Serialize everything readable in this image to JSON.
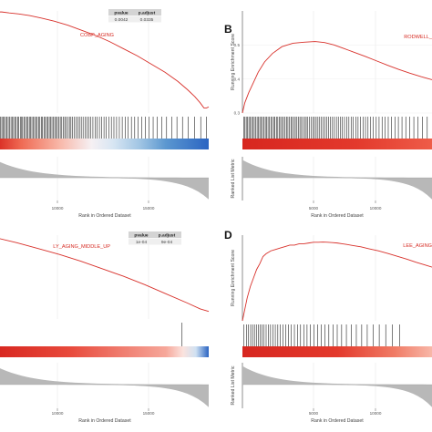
{
  "chart_data": [
    {
      "type": "line",
      "panel_label": "",
      "gene_set": "COBP_AGING",
      "stats": {
        "pvalue_label": "pvalue",
        "padj_label": "p.adjust",
        "pvalue": "0.0042",
        "padj": "0.0335"
      },
      "xlabel": "Rank in Ordered Dataset",
      "ylabel_es": "",
      "ylabel_metric": "",
      "x_ticks": [
        "10000",
        "15000"
      ],
      "x_tick_values": [
        10000,
        15000
      ],
      "xlim": [
        0,
        20000
      ],
      "es_ylim": [
        0,
        1
      ],
      "es_curve": {
        "x": [
          0,
          600,
          1300,
          2200,
          3200,
          4300,
          5500,
          6800,
          8100,
          9400,
          10700,
          12000,
          13300,
          14600,
          15900,
          17100,
          18000,
          18700,
          19200,
          19550,
          19800,
          20000
        ],
        "y": [
          0.99,
          0.99,
          0.98,
          0.97,
          0.955,
          0.93,
          0.9,
          0.86,
          0.81,
          0.76,
          0.7,
          0.63,
          0.56,
          0.48,
          0.4,
          0.31,
          0.23,
          0.16,
          0.1,
          0.05,
          0.05,
          0.06
        ]
      },
      "hits": [
        60,
        180,
        320,
        450,
        600,
        700,
        820,
        950,
        1080,
        1200,
        1330,
        1460,
        1560,
        1700,
        1820,
        1950,
        2080,
        2200,
        2330,
        2460,
        2550,
        2690,
        2810,
        2930,
        3060,
        3180,
        3300,
        3420,
        3560,
        3670,
        3800,
        3920,
        4050,
        4170,
        4300,
        4420,
        4550,
        4680,
        4800,
        4930,
        5050,
        5180,
        5300,
        5440,
        5560,
        5690,
        5810,
        5950,
        6080,
        6220,
        6360,
        6500,
        6640,
        6790,
        6940,
        7080,
        7240,
        7400,
        7560,
        7720,
        7880,
        8050,
        8220,
        8400,
        8580,
        8760,
        8950,
        9140,
        9340,
        9540,
        9750,
        9960,
        10180,
        10400,
        10630,
        10870,
        11110,
        11360,
        11620,
        11890,
        12160,
        12450,
        12750,
        13060,
        13380,
        13710,
        14050,
        14410,
        14790,
        15190,
        15610,
        16050,
        16520,
        17020,
        17540,
        18090,
        18660,
        19250,
        19800
      ],
      "band_colors": [
        "#d7261f",
        "#ef6a53",
        "#f8b7a8",
        "#f6f0f3",
        "#d8e6f3",
        "#9fc4e3",
        "#5b97d0",
        "#2a64c2"
      ],
      "band_stops": [
        0,
        0.12,
        0.3,
        0.45,
        0.55,
        0.68,
        0.8,
        1
      ]
    },
    {
      "type": "line",
      "panel_label": "B",
      "gene_set": "RODWELL_",
      "xlabel": "Rank in Ordered Dataset",
      "ylabel_es": "Running Enrichment Score",
      "ylabel_metric": "Ranked List Metric",
      "x_ticks": [
        "5000",
        "10000"
      ],
      "x_tick_values": [
        5000,
        10000
      ],
      "xlim": [
        0,
        12000
      ],
      "es_ylim": [
        0.3,
        0.6
      ],
      "es_ticks": [
        "0.5",
        "0.4",
        "0.3"
      ],
      "es_tick_values": [
        0.5,
        0.4,
        0.3
      ],
      "es_curve": {
        "x": [
          0,
          150,
          400,
          700,
          1000,
          1400,
          1900,
          2500,
          3200,
          3900,
          4600,
          5200,
          5800,
          6400,
          7100,
          7800,
          8500,
          9200,
          9900,
          10600,
          11300,
          12000
        ],
        "y": [
          0.3,
          0.33,
          0.36,
          0.39,
          0.42,
          0.45,
          0.475,
          0.495,
          0.505,
          0.508,
          0.51,
          0.507,
          0.5,
          0.49,
          0.478,
          0.466,
          0.453,
          0.44,
          0.428,
          0.417,
          0.407,
          0.398
        ]
      },
      "hits": [
        80,
        160,
        240,
        330,
        410,
        500,
        580,
        670,
        750,
        840,
        930,
        1010,
        1100,
        1190,
        1270,
        1360,
        1450,
        1540,
        1620,
        1710,
        1800,
        1890,
        1980,
        2060,
        2150,
        2240,
        2330,
        2420,
        2510,
        2600,
        2700,
        2790,
        2880,
        2970,
        3070,
        3160,
        3260,
        3350,
        3450,
        3540,
        3640,
        3740,
        3840,
        3940,
        4040,
        4140,
        4250,
        4350,
        4460,
        4560,
        4670,
        4780,
        4890,
        5000,
        5110,
        5230,
        5340,
        5460,
        5580,
        5700,
        5820,
        5950,
        6070,
        6200,
        6330,
        6460,
        6600,
        6740,
        6880,
        7020,
        7170,
        7320,
        7470,
        7630,
        7790,
        7950,
        8120,
        8290,
        8470,
        8650,
        8840,
        9030,
        9230,
        9440,
        9650,
        9870,
        10100,
        10340,
        10590,
        10850,
        11120,
        11400,
        11700
      ],
      "band_colors": [
        "#d7261f",
        "#e3392c",
        "#ee5c48"
      ],
      "band_stops": [
        0,
        0.6,
        1
      ]
    },
    {
      "type": "line",
      "panel_label": "",
      "gene_set": "LY_AGING_MIDDLE_UP",
      "stats": {
        "pvalue_label": "pvalue",
        "padj_label": "p.adjust",
        "pvalue": "1e-04",
        "padj": "9e-04"
      },
      "xlabel": "Rank in Ordered Dataset",
      "ylabel_es": "",
      "ylabel_metric": "",
      "x_ticks": [
        "10000",
        "15000"
      ],
      "x_tick_values": [
        10000,
        15000
      ],
      "xlim": [
        0,
        20000
      ],
      "es_ylim": [
        0,
        1
      ],
      "es_curve": {
        "x": [
          0,
          2000,
          4000,
          6000,
          8000,
          10000,
          12000,
          14000,
          16000,
          18000,
          19200,
          20000
        ],
        "y": [
          0.97,
          0.91,
          0.84,
          0.77,
          0.69,
          0.6,
          0.51,
          0.41,
          0.3,
          0.19,
          0.12,
          0.09
        ]
      },
      "hits": [
        17500
      ],
      "band_colors": [
        "#d7261f",
        "#e84a3c",
        "#f6a79a",
        "#fbe3de",
        "#cfe1f2",
        "#2a64c2"
      ],
      "band_stops": [
        0,
        0.35,
        0.8,
        0.88,
        0.94,
        1
      ]
    },
    {
      "type": "line",
      "panel_label": "D",
      "gene_set": "LEE_AGING",
      "xlabel": "Rank in Ordered Dataset",
      "ylabel_es": "Running Enrichment Score",
      "ylabel_metric": "Ranked List Metric",
      "x_ticks": [
        "5000",
        "10000"
      ],
      "x_tick_values": [
        5000,
        10000
      ],
      "xlim": [
        0,
        12000
      ],
      "es_ylim": [
        0.0,
        0.6
      ],
      "es_curve": {
        "x": [
          0,
          150,
          300,
          500,
          700,
          900,
          1100,
          1300,
          1500,
          1800,
          2100,
          2400,
          2700,
          3000,
          3300,
          3600,
          3900,
          4200,
          4500,
          4800,
          5100,
          5400,
          5700,
          6000,
          6300,
          6600,
          7000,
          7500,
          8000,
          8600,
          9200,
          9800,
          10400,
          11000,
          11600,
          12000
        ],
        "y": [
          0.0,
          0.08,
          0.16,
          0.24,
          0.3,
          0.36,
          0.4,
          0.45,
          0.47,
          0.49,
          0.5,
          0.51,
          0.52,
          0.53,
          0.53,
          0.54,
          0.54,
          0.545,
          0.55,
          0.55,
          0.552,
          0.55,
          0.548,
          0.545,
          0.54,
          0.535,
          0.527,
          0.518,
          0.505,
          0.49,
          0.472,
          0.452,
          0.432,
          0.41,
          0.39,
          0.376
        ]
      },
      "hits": [
        100,
        250,
        380,
        520,
        640,
        760,
        880,
        1000,
        1120,
        1250,
        1370,
        1500,
        1640,
        1780,
        1930,
        2080,
        2240,
        2400,
        2570,
        2740,
        2920,
        3100,
        3290,
        3480,
        3680,
        3880,
        4090,
        4300,
        4520,
        4750,
        4980,
        5220,
        5470,
        5730,
        6000,
        6280,
        6580,
        6890,
        7210,
        7550,
        7900,
        8270,
        8660,
        9070,
        9500,
        9950
      ],
      "band_colors": [
        "#d7261f",
        "#e3392c",
        "#f07b65",
        "#f8b7a8"
      ],
      "band_stops": [
        0,
        0.5,
        0.8,
        1
      ]
    }
  ]
}
